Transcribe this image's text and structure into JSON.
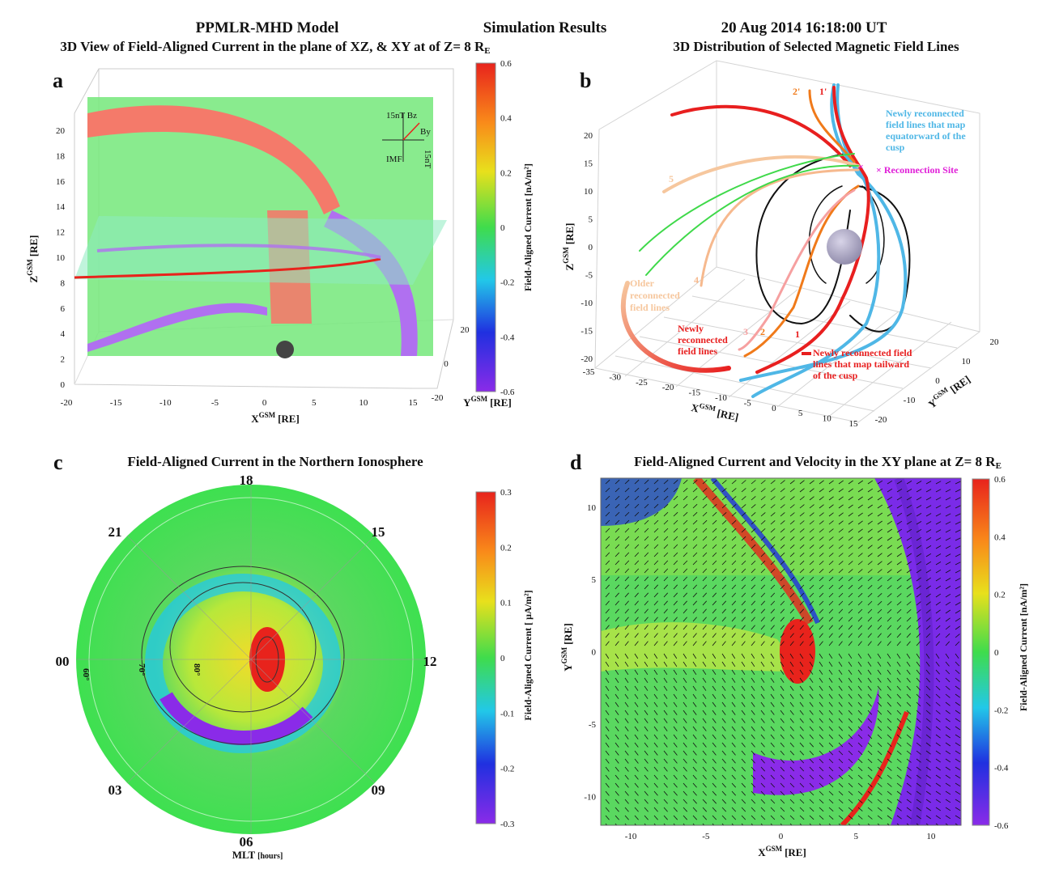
{
  "header": {
    "model": "PPMLR-MHD Model",
    "results": "Simulation Results",
    "datetime": "20 Aug 2014  16:18:00 UT",
    "subtitle_a": "3D View of Field-Aligned Current in the plane of XZ, & XY at of Z= 8 R",
    "subtitle_a_sub": "E",
    "subtitle_b": "3D Distribution of Selected Magnetic Field Lines"
  },
  "colors": {
    "red": "#e81f1f",
    "orange": "#f07a1a",
    "peach": "#f6c79e",
    "green": "#3fd94a",
    "blue": "#4fb7e6",
    "magenta": "#e020d8"
  },
  "chart_data": [
    {
      "panel": "a",
      "type": "heatmap",
      "title": "3D View of Field-Aligned Current in the plane of XZ, & XY at of Z= 8 RE",
      "xlabel": "X",
      "xlabel_sup": "GSM",
      "xlabel_unit": "[RE]",
      "ylabel": "Y",
      "ylabel_sup": "GSM",
      "ylabel_unit": "[RE]",
      "zlabel": "Z",
      "zlabel_sup": "GSM",
      "zlabel_unit": "[RE]",
      "xticks": [
        -20,
        -15,
        -10,
        -5,
        0,
        5,
        10,
        15
      ],
      "yticks": [
        20,
        0,
        -20
      ],
      "zticks": [
        0,
        2,
        4,
        6,
        8,
        10,
        12,
        14,
        16,
        18,
        20
      ],
      "colorbar": {
        "label": "Field-Aligned Current [nA/m²]",
        "ticks": [
          0.6,
          0.4,
          0.2,
          0,
          -0.2,
          -0.4,
          -0.6
        ],
        "range": [
          -0.6,
          0.6
        ]
      },
      "imf_glyph": {
        "bz": "15nT Bz",
        "by": "By",
        "imf": "IMF",
        "scale": "15nT"
      }
    },
    {
      "panel": "b",
      "type": "line",
      "title": "3D Distribution of Selected Magnetic Field Lines",
      "xlabel": "X",
      "xlabel_sup": "GSM",
      "xlabel_unit": "[RE]",
      "ylabel": "Y",
      "ylabel_sup": "GSM",
      "ylabel_unit": "[RE]",
      "zlabel": "Z",
      "zlabel_sup": "GSM",
      "zlabel_unit": "[RE]",
      "xticks": [
        -35,
        -30,
        -25,
        -20,
        -15,
        -10,
        -5,
        0,
        5,
        10,
        15
      ],
      "yticks": [
        -20,
        -10,
        0,
        10,
        20
      ],
      "zticks": [
        20,
        15,
        10,
        5,
        0,
        -5,
        -10,
        -15,
        -20
      ],
      "line_labels": [
        "1",
        "2",
        "3",
        "4",
        "5",
        "1'",
        "2'"
      ],
      "annotations": {
        "equatorward": "Newly reconnected field lines that map equatorward of the cusp",
        "reconnection": "× Reconnection Site",
        "older": "Older reconnected field lines",
        "newly": "Newly reconnected field lines",
        "tailward": "Newly reconnected field lines that map tailward of the cusp"
      }
    },
    {
      "panel": "c",
      "type": "heatmap",
      "title": "Field-Aligned Current in the Northern Ionosphere",
      "mlt_labels": [
        "18",
        "15",
        "12",
        "09",
        "06",
        "03",
        "00",
        "21"
      ],
      "lat_labels": [
        "60°",
        "70°",
        "80°"
      ],
      "rlabel": "MLT",
      "rlabel_unit": "[hours]",
      "colorbar": {
        "label": "Field-Aligned Current [ μA/m²]",
        "ticks": [
          0.3,
          0.2,
          0.1,
          0,
          -0.1,
          -0.2,
          -0.3
        ],
        "range": [
          -0.3,
          0.3
        ]
      }
    },
    {
      "panel": "d",
      "type": "heatmap",
      "title": "Field-Aligned Current and Velocity in the XY plane at Z= 8 R",
      "title_sub": "E",
      "xlabel": "X",
      "xlabel_sup": "GSM",
      "xlabel_unit": "[RE]",
      "ylabel": "Y",
      "ylabel_sup": "GSM",
      "ylabel_unit": "[RE]",
      "xlim": [
        -12,
        12
      ],
      "ylim": [
        -12,
        12
      ],
      "xticks": [
        -10,
        -5,
        0,
        5,
        10
      ],
      "yticks": [
        10,
        5,
        0,
        -5,
        -10
      ],
      "colorbar": {
        "label": "Field-Aligned Current [nA/m²]",
        "ticks": [
          0.6,
          0.4,
          0.2,
          0,
          -0.2,
          -0.4,
          -0.6
        ],
        "range": [
          -0.6,
          0.6
        ]
      }
    }
  ]
}
